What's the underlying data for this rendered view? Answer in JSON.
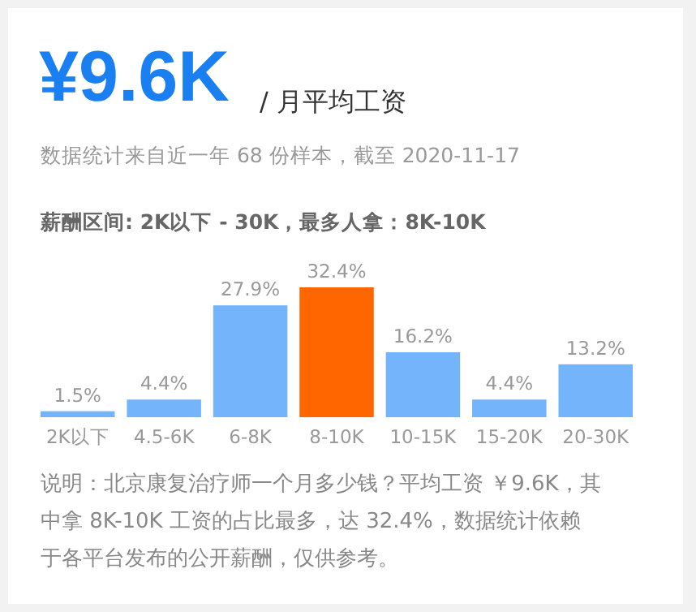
{
  "chart_data": {
    "type": "bar",
    "title": "¥9.6K",
    "subtitle": "/ 月平均工资",
    "annotations": [
      "数据统计来自近一年 68 份样本，截至 2020-11-17",
      "薪酬区间: 2K以下 - 30K，最多人拿：8K-10K",
      "说明：北京康复治疗师一个月多少钱？平均工资 ￥9.6K，其中拿 8K-10K 工资的占比最多，达 32.4%，数据统计依赖于各平台发布的公开薪酬，仅供参考。"
    ],
    "categories": [
      "2K以下",
      "4.5-6K",
      "6-8K",
      "8-10K",
      "10-15K",
      "15-20K",
      "20-30K"
    ],
    "values": [
      1.5,
      4.4,
      27.9,
      32.4,
      16.2,
      4.4,
      13.2
    ],
    "colors": [
      "#74b4fb",
      "#74b4fb",
      "#74b4fb",
      "#ff6600",
      "#74b4fb",
      "#74b4fb",
      "#74b4fb"
    ],
    "value_labels": [
      "1.5%",
      "4.4%",
      "27.9%",
      "32.4%",
      "16.2%",
      "4.4%",
      "13.2%"
    ]
  }
}
